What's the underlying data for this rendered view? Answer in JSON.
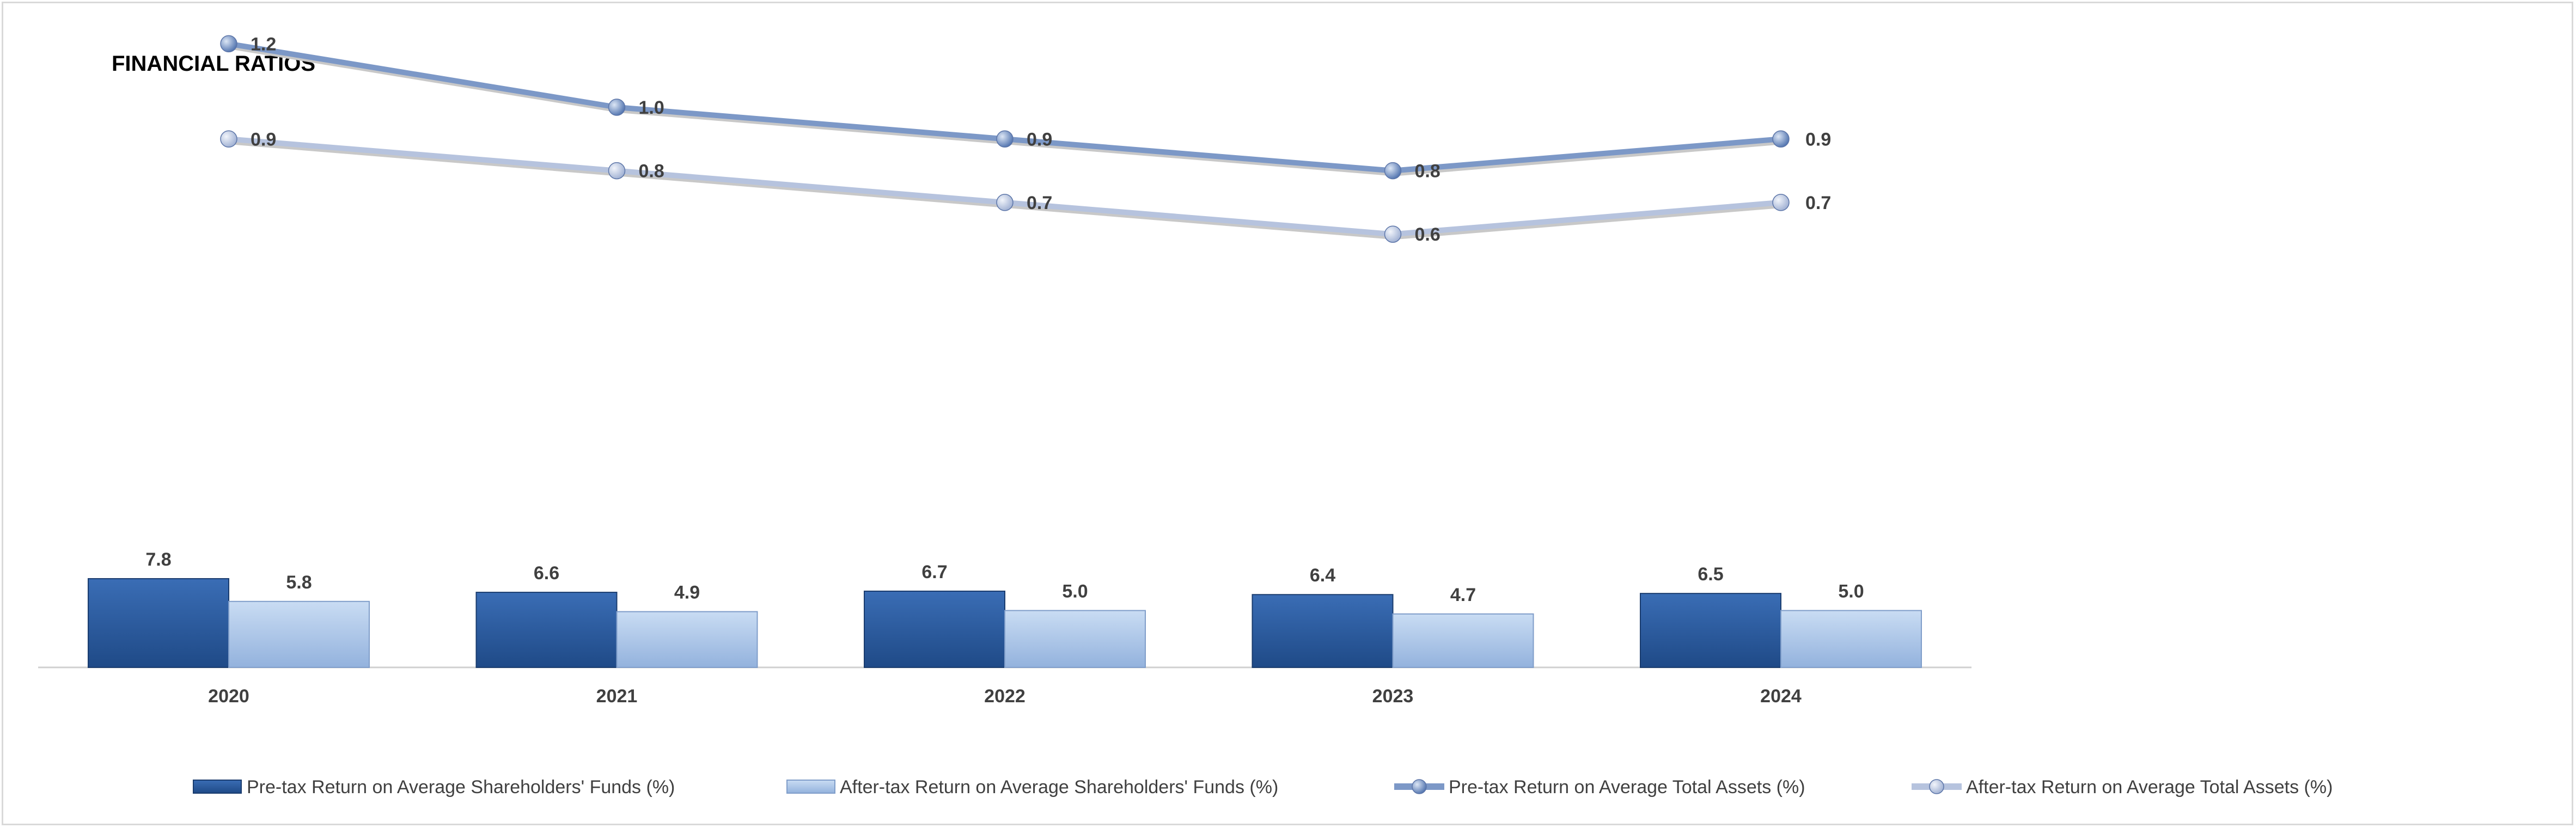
{
  "chart_data": {
    "type": "bar+line",
    "title": "FINANCIAL RATIOS",
    "categories": [
      "2020",
      "2021",
      "2022",
      "2023",
      "2024"
    ],
    "series": [
      {
        "name": "Pre-tax Return on Average Shareholders' Funds (%)",
        "kind": "bar",
        "values": [
          "7.8",
          "6.6",
          "6.7",
          "6.4",
          "6.5"
        ],
        "color": "#2E5C9E"
      },
      {
        "name": "After-tax Return on Average Shareholders' Funds (%)",
        "kind": "bar",
        "values": [
          "5.8",
          "4.9",
          "5.0",
          "4.7",
          "5.0"
        ],
        "color": "#A9C4E8"
      },
      {
        "name": "Pre-tax Return on Average Total Assets (%)",
        "kind": "line",
        "values": [
          "1.2",
          "1.0",
          "0.9",
          "0.8",
          "0.9"
        ],
        "color": "#7C98C7"
      },
      {
        "name": "After-tax Return on Average  Total Assets (%)",
        "kind": "line",
        "values": [
          "0.9",
          "0.8",
          "0.7",
          "0.6",
          "0.7"
        ],
        "color": "#B6C3DE"
      }
    ],
    "legend_position": "bottom",
    "grid": false
  }
}
